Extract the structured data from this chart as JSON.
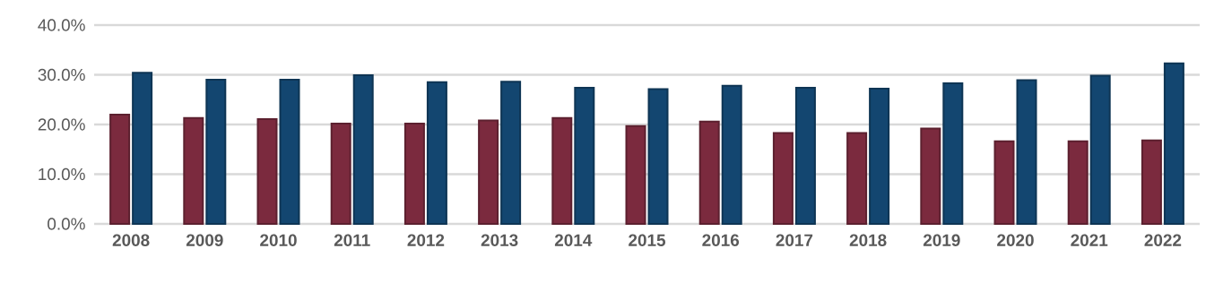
{
  "chart_data": {
    "type": "bar",
    "categories": [
      "2008",
      "2009",
      "2010",
      "2011",
      "2012",
      "2013",
      "2014",
      "2015",
      "2016",
      "2017",
      "2018",
      "2019",
      "2020",
      "2021",
      "2022"
    ],
    "series": [
      {
        "color": "#7b2a3e",
        "values": [
          22.0,
          21.3,
          21.1,
          20.2,
          20.2,
          20.8,
          21.3,
          19.7,
          20.6,
          18.3,
          18.3,
          19.2,
          16.6,
          16.6,
          16.8
        ]
      },
      {
        "color": "#134670",
        "values": [
          30.4,
          29.0,
          29.0,
          29.9,
          28.5,
          28.6,
          27.4,
          27.1,
          27.8,
          27.4,
          27.2,
          28.3,
          28.9,
          29.8,
          32.3
        ]
      }
    ],
    "ylim": [
      0,
      40
    ],
    "yticks": [
      {
        "value": 0,
        "label": "0.0%"
      },
      {
        "value": 10,
        "label": "10.0%"
      },
      {
        "value": 20,
        "label": "20.0%"
      },
      {
        "value": 30,
        "label": "30.0%"
      },
      {
        "value": 40,
        "label": "40.0%"
      }
    ],
    "grid": "y"
  }
}
